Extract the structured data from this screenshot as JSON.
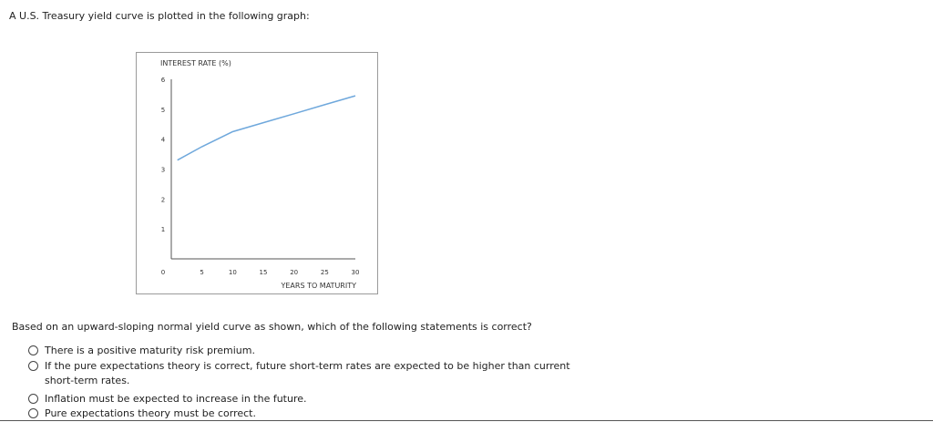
{
  "intro_text": "A U.S. Treasury yield curve is plotted in the following graph:",
  "chart_data": {
    "type": "line",
    "ylabel": "INTEREST RATE (%)",
    "xlabel": "YEARS TO MATURITY",
    "x_ticks": [
      5,
      10,
      15,
      20,
      25,
      30
    ],
    "y_ticks": [
      6,
      5,
      4,
      3,
      2,
      1
    ],
    "origin_label": "0",
    "xlim": [
      0,
      30
    ],
    "ylim": [
      0,
      6
    ],
    "grid": false,
    "line_color": "#6fa8dc",
    "series": [
      {
        "x": [
          1,
          5,
          10,
          15,
          20,
          25,
          30
        ],
        "y": [
          3.3,
          3.75,
          4.25,
          4.55,
          4.85,
          5.15,
          5.45
        ]
      }
    ]
  },
  "question_text": "Based on an upward-sloping normal yield curve as shown, which of the following statements is correct?",
  "options": [
    "There is a positive maturity risk premium.",
    "If the pure expectations theory is correct, future short-term rates are expected to be higher than current short-term rates.",
    "Inflation must be expected to increase in the future.",
    "Pure expectations theory must be correct."
  ]
}
